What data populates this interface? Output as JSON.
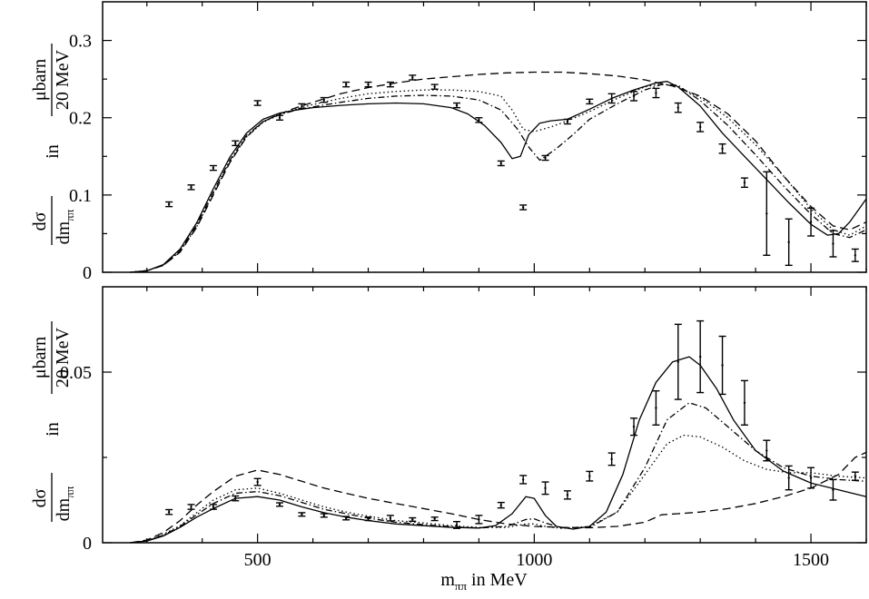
{
  "chart_data": [
    {
      "type": "line",
      "panel": "top",
      "ylabel_parts": {
        "frac1_num": "dσ",
        "frac1_den": "dm",
        "frac1_sub": "ππ",
        "in": "in",
        "frac2_num": "μbarn",
        "frac2_den": "20 MeV"
      },
      "xlim": [
        220,
        1600
      ],
      "ylim": [
        0,
        0.35
      ],
      "y_ticks": [
        0,
        0.1,
        0.2,
        0.3
      ],
      "y_tick_labels": [
        "0",
        "0.1",
        "0.2",
        "0.3"
      ],
      "x_ticks": [
        500,
        1000,
        1500
      ],
      "data_points": [
        {
          "x": 340,
          "y": 0.088,
          "err": 0.003
        },
        {
          "x": 380,
          "y": 0.11,
          "err": 0.003
        },
        {
          "x": 420,
          "y": 0.135,
          "err": 0.003
        },
        {
          "x": 460,
          "y": 0.167,
          "err": 0.003
        },
        {
          "x": 500,
          "y": 0.219,
          "err": 0.003
        },
        {
          "x": 540,
          "y": 0.2,
          "err": 0.003
        },
        {
          "x": 580,
          "y": 0.215,
          "err": 0.003
        },
        {
          "x": 620,
          "y": 0.223,
          "err": 0.003
        },
        {
          "x": 660,
          "y": 0.243,
          "err": 0.003
        },
        {
          "x": 700,
          "y": 0.243,
          "err": 0.003
        },
        {
          "x": 740,
          "y": 0.243,
          "err": 0.003
        },
        {
          "x": 780,
          "y": 0.252,
          "err": 0.003
        },
        {
          "x": 820,
          "y": 0.24,
          "err": 0.003
        },
        {
          "x": 860,
          "y": 0.216,
          "err": 0.003
        },
        {
          "x": 900,
          "y": 0.197,
          "err": 0.003
        },
        {
          "x": 940,
          "y": 0.141,
          "err": 0.003
        },
        {
          "x": 980,
          "y": 0.084,
          "err": 0.003
        },
        {
          "x": 1020,
          "y": 0.148,
          "err": 0.003
        },
        {
          "x": 1060,
          "y": 0.195,
          "err": 0.003
        },
        {
          "x": 1100,
          "y": 0.221,
          "err": 0.003
        },
        {
          "x": 1140,
          "y": 0.225,
          "err": 0.006
        },
        {
          "x": 1180,
          "y": 0.228,
          "err": 0.006
        },
        {
          "x": 1220,
          "y": 0.232,
          "err": 0.006
        },
        {
          "x": 1260,
          "y": 0.213,
          "err": 0.006
        },
        {
          "x": 1300,
          "y": 0.188,
          "err": 0.006
        },
        {
          "x": 1340,
          "y": 0.16,
          "err": 0.006
        },
        {
          "x": 1380,
          "y": 0.116,
          "err": 0.006
        },
        {
          "x": 1420,
          "y": 0.076,
          "err": 0.054
        },
        {
          "x": 1460,
          "y": 0.039,
          "err": 0.03
        },
        {
          "x": 1500,
          "y": 0.065,
          "err": 0.018
        },
        {
          "x": 1540,
          "y": 0.037,
          "err": 0.017
        },
        {
          "x": 1580,
          "y": 0.022,
          "err": 0.008
        }
      ],
      "series": [
        {
          "name": "solid",
          "dash": "none",
          "x": [
            270,
            300,
            330,
            360,
            390,
            420,
            450,
            480,
            510,
            540,
            570,
            600,
            650,
            700,
            750,
            800,
            850,
            880,
            910,
            940,
            960,
            975,
            990,
            1010,
            1030,
            1060,
            1100,
            1140,
            1180,
            1220,
            1240,
            1260,
            1300,
            1340,
            1380,
            1420,
            1460,
            1500,
            1530,
            1550,
            1570,
            1600
          ],
          "y": [
            0.0,
            0.002,
            0.01,
            0.03,
            0.064,
            0.108,
            0.149,
            0.18,
            0.198,
            0.206,
            0.21,
            0.213,
            0.216,
            0.218,
            0.219,
            0.218,
            0.213,
            0.205,
            0.19,
            0.168,
            0.147,
            0.15,
            0.178,
            0.193,
            0.196,
            0.198,
            0.211,
            0.225,
            0.236,
            0.245,
            0.247,
            0.24,
            0.215,
            0.18,
            0.15,
            0.12,
            0.09,
            0.062,
            0.048,
            0.05,
            0.065,
            0.095
          ]
        },
        {
          "name": "dashed",
          "dash": "9 5",
          "x": [
            270,
            300,
            330,
            360,
            390,
            420,
            450,
            480,
            510,
            540,
            570,
            600,
            650,
            700,
            750,
            800,
            850,
            900,
            950,
            1000,
            1050,
            1100,
            1150,
            1200,
            1250,
            1300,
            1350,
            1400,
            1450,
            1500,
            1540,
            1570,
            1600
          ],
          "y": [
            0.0,
            0.002,
            0.009,
            0.026,
            0.058,
            0.1,
            0.142,
            0.175,
            0.195,
            0.205,
            0.213,
            0.22,
            0.231,
            0.239,
            0.245,
            0.25,
            0.253,
            0.256,
            0.258,
            0.259,
            0.259,
            0.257,
            0.254,
            0.249,
            0.241,
            0.228,
            0.205,
            0.17,
            0.125,
            0.085,
            0.06,
            0.055,
            0.065
          ]
        },
        {
          "name": "dotted",
          "dash": "1.5 3",
          "x": [
            270,
            300,
            330,
            360,
            390,
            420,
            450,
            480,
            510,
            540,
            570,
            600,
            650,
            700,
            750,
            800,
            850,
            900,
            940,
            960,
            980,
            1000,
            1030,
            1060,
            1100,
            1150,
            1200,
            1230,
            1260,
            1300,
            1350,
            1400,
            1450,
            1500,
            1540,
            1570,
            1600
          ],
          "y": [
            0.0,
            0.002,
            0.009,
            0.027,
            0.059,
            0.102,
            0.143,
            0.175,
            0.194,
            0.204,
            0.211,
            0.217,
            0.225,
            0.231,
            0.234,
            0.236,
            0.236,
            0.234,
            0.228,
            0.21,
            0.185,
            0.182,
            0.188,
            0.196,
            0.208,
            0.225,
            0.24,
            0.244,
            0.24,
            0.226,
            0.2,
            0.165,
            0.125,
            0.082,
            0.055,
            0.048,
            0.06
          ]
        },
        {
          "name": "dash-dot",
          "dash": "7 3 1.5 3",
          "x": [
            270,
            300,
            330,
            360,
            390,
            420,
            450,
            480,
            510,
            540,
            570,
            600,
            650,
            700,
            750,
            800,
            850,
            900,
            940,
            970,
            990,
            1010,
            1040,
            1070,
            1100,
            1150,
            1200,
            1230,
            1260,
            1300,
            1350,
            1400,
            1450,
            1500,
            1540,
            1570,
            1600
          ],
          "y": [
            0.0,
            0.002,
            0.009,
            0.028,
            0.061,
            0.104,
            0.145,
            0.177,
            0.195,
            0.204,
            0.21,
            0.214,
            0.22,
            0.225,
            0.228,
            0.229,
            0.228,
            0.223,
            0.21,
            0.185,
            0.162,
            0.145,
            0.16,
            0.178,
            0.198,
            0.218,
            0.236,
            0.243,
            0.242,
            0.222,
            0.19,
            0.152,
            0.112,
            0.075,
            0.05,
            0.045,
            0.055
          ]
        }
      ]
    },
    {
      "type": "line",
      "panel": "bottom",
      "ylabel_parts": {
        "frac1_num": "dσ",
        "frac1_den": "dm",
        "frac1_sub": "ππ",
        "in": "in",
        "frac2_num": "μbarn",
        "frac2_den": "20 MeV"
      },
      "xlabel_parts": {
        "m": "m",
        "sub": "ππ",
        "rest": " in MeV"
      },
      "xlim": [
        220,
        1600
      ],
      "ylim": [
        0,
        0.075
      ],
      "y_ticks": [
        0,
        0.05
      ],
      "y_tick_labels": [
        "0",
        "0.05"
      ],
      "x_ticks": [
        500,
        1000,
        1500
      ],
      "x_tick_labels": [
        "500",
        "1000",
        "1500"
      ],
      "data_points": [
        {
          "x": 340,
          "y": 0.009,
          "err": 0.0007
        },
        {
          "x": 380,
          "y": 0.0105,
          "err": 0.0007
        },
        {
          "x": 420,
          "y": 0.0105,
          "err": 0.0007
        },
        {
          "x": 460,
          "y": 0.013,
          "err": 0.0007
        },
        {
          "x": 500,
          "y": 0.0178,
          "err": 0.001
        },
        {
          "x": 540,
          "y": 0.0112,
          "err": 0.0005
        },
        {
          "x": 580,
          "y": 0.0083,
          "err": 0.0005
        },
        {
          "x": 620,
          "y": 0.008,
          "err": 0.0005
        },
        {
          "x": 660,
          "y": 0.0072,
          "err": 0.0005
        },
        {
          "x": 700,
          "y": 0.007,
          "err": 0.0005
        },
        {
          "x": 740,
          "y": 0.0072,
          "err": 0.0008
        },
        {
          "x": 780,
          "y": 0.0068,
          "err": 0.0005
        },
        {
          "x": 820,
          "y": 0.007,
          "err": 0.0005
        },
        {
          "x": 860,
          "y": 0.0052,
          "err": 0.001
        },
        {
          "x": 900,
          "y": 0.0068,
          "err": 0.0012
        },
        {
          "x": 940,
          "y": 0.011,
          "err": 0.0008
        },
        {
          "x": 980,
          "y": 0.0185,
          "err": 0.0012
        },
        {
          "x": 1020,
          "y": 0.016,
          "err": 0.0018
        },
        {
          "x": 1060,
          "y": 0.014,
          "err": 0.0012
        },
        {
          "x": 1100,
          "y": 0.0195,
          "err": 0.0014
        },
        {
          "x": 1140,
          "y": 0.0245,
          "err": 0.0018
        },
        {
          "x": 1180,
          "y": 0.034,
          "err": 0.0025
        },
        {
          "x": 1220,
          "y": 0.0395,
          "err": 0.005
        },
        {
          "x": 1260,
          "y": 0.053,
          "err": 0.011
        },
        {
          "x": 1300,
          "y": 0.0545,
          "err": 0.0105
        },
        {
          "x": 1340,
          "y": 0.052,
          "err": 0.0085
        },
        {
          "x": 1380,
          "y": 0.041,
          "err": 0.0065
        },
        {
          "x": 1420,
          "y": 0.027,
          "err": 0.003
        },
        {
          "x": 1460,
          "y": 0.019,
          "err": 0.0035
        },
        {
          "x": 1500,
          "y": 0.019,
          "err": 0.003
        },
        {
          "x": 1540,
          "y": 0.0155,
          "err": 0.003
        },
        {
          "x": 1580,
          "y": 0.0195,
          "err": 0.0012
        }
      ],
      "series": [
        {
          "name": "solid",
          "dash": "none",
          "x": [
            270,
            300,
            330,
            360,
            390,
            420,
            460,
            500,
            540,
            580,
            620,
            660,
            700,
            750,
            800,
            850,
            900,
            930,
            960,
            985,
            1000,
            1020,
            1040,
            1070,
            1100,
            1130,
            1160,
            1190,
            1220,
            1250,
            1280,
            1300,
            1330,
            1360,
            1400,
            1450,
            1500,
            1550,
            1600
          ],
          "y": [
            0.0,
            0.0005,
            0.002,
            0.0045,
            0.0075,
            0.01,
            0.013,
            0.0135,
            0.0125,
            0.0105,
            0.0088,
            0.0075,
            0.0065,
            0.0055,
            0.005,
            0.0045,
            0.0043,
            0.005,
            0.0085,
            0.0135,
            0.013,
            0.008,
            0.0048,
            0.004,
            0.0048,
            0.009,
            0.02,
            0.036,
            0.047,
            0.053,
            0.0545,
            0.052,
            0.045,
            0.036,
            0.027,
            0.021,
            0.0175,
            0.0155,
            0.0135
          ]
        },
        {
          "name": "dashed",
          "dash": "9 5",
          "x": [
            270,
            300,
            330,
            360,
            390,
            420,
            460,
            500,
            540,
            580,
            620,
            660,
            700,
            750,
            800,
            850,
            900,
            950,
            1000,
            1050,
            1100,
            1150,
            1200,
            1230,
            1260,
            1300,
            1350,
            1400,
            1450,
            1500,
            1550,
            1580,
            1600
          ],
          "y": [
            0.0,
            0.0008,
            0.003,
            0.0065,
            0.011,
            0.015,
            0.0195,
            0.0213,
            0.02,
            0.018,
            0.016,
            0.0145,
            0.013,
            0.0115,
            0.01,
            0.0085,
            0.0068,
            0.0055,
            0.0048,
            0.0045,
            0.0044,
            0.0048,
            0.006,
            0.0082,
            0.0085,
            0.009,
            0.01,
            0.0115,
            0.0135,
            0.016,
            0.02,
            0.025,
            0.0265
          ]
        },
        {
          "name": "dotted",
          "dash": "1.5 3",
          "x": [
            270,
            300,
            330,
            360,
            390,
            420,
            460,
            500,
            540,
            580,
            620,
            660,
            700,
            750,
            800,
            850,
            900,
            950,
            985,
            1000,
            1020,
            1050,
            1100,
            1150,
            1200,
            1240,
            1270,
            1300,
            1340,
            1380,
            1420,
            1460,
            1500,
            1550,
            1600
          ],
          "y": [
            0.0,
            0.0006,
            0.0025,
            0.005,
            0.0088,
            0.0125,
            0.0155,
            0.016,
            0.0145,
            0.0125,
            0.0105,
            0.009,
            0.0078,
            0.0065,
            0.0058,
            0.005,
            0.0045,
            0.0045,
            0.0055,
            0.0055,
            0.0048,
            0.0042,
            0.0048,
            0.009,
            0.02,
            0.029,
            0.0315,
            0.031,
            0.028,
            0.024,
            0.0215,
            0.0205,
            0.0205,
            0.0195,
            0.019
          ]
        },
        {
          "name": "dash-dot",
          "dash": "7 3 1.5 3",
          "x": [
            270,
            300,
            330,
            360,
            390,
            420,
            460,
            500,
            540,
            580,
            620,
            660,
            700,
            750,
            800,
            850,
            900,
            950,
            985,
            1000,
            1020,
            1050,
            1100,
            1150,
            1200,
            1240,
            1280,
            1310,
            1350,
            1400,
            1450,
            1500,
            1550,
            1600
          ],
          "y": [
            0.0,
            0.0006,
            0.0022,
            0.0048,
            0.0082,
            0.0115,
            0.0145,
            0.015,
            0.0138,
            0.0118,
            0.0098,
            0.0085,
            0.0072,
            0.006,
            0.0053,
            0.0047,
            0.0043,
            0.0048,
            0.0068,
            0.007,
            0.0058,
            0.0044,
            0.0045,
            0.009,
            0.022,
            0.036,
            0.041,
            0.0395,
            0.034,
            0.027,
            0.022,
            0.0195,
            0.0185,
            0.018
          ]
        }
      ]
    }
  ]
}
